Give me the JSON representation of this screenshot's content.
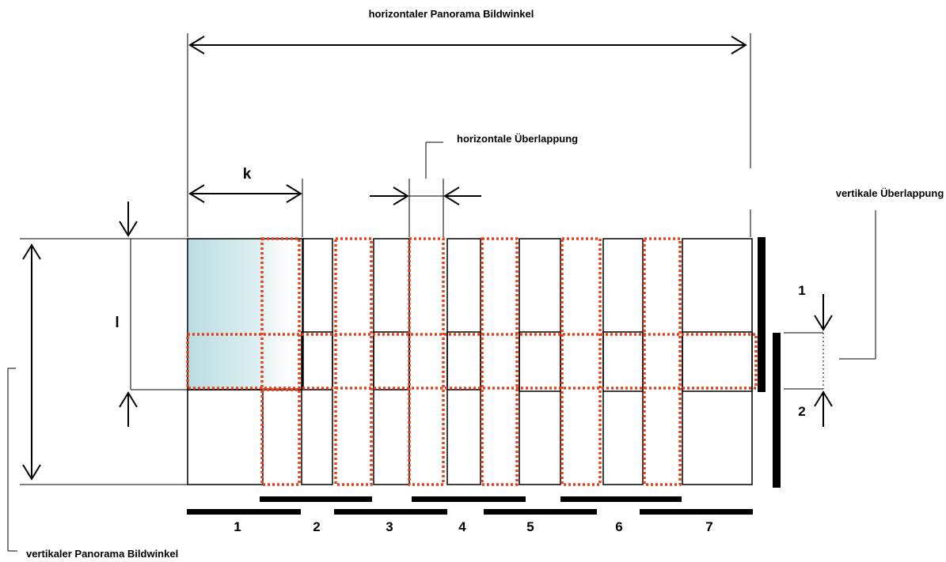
{
  "labels": {
    "horizontal_angle": "horizontaler Panorama Bildwinkel",
    "horizontal_overlap": "horizontale Überlappung",
    "vertical_overlap": "vertikale Überlappung",
    "vertical_angle": "vertikaler Panorama Bildwinkel",
    "k": "k",
    "l": "l",
    "row_1": "1",
    "row_2": "2"
  },
  "columns": [
    "1",
    "2",
    "3",
    "4",
    "5",
    "6",
    "7"
  ],
  "colors": {
    "overlap_dots": "#e8401c",
    "highlight": "#b9dde2"
  }
}
